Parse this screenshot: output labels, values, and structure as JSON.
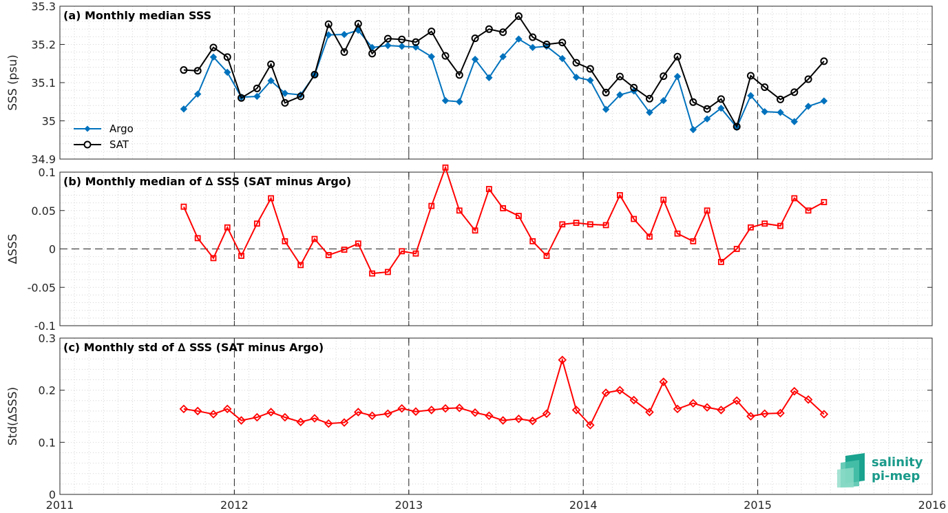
{
  "logo": {
    "line1": "salinity",
    "line2": "pi-mep"
  },
  "chart_data": [
    {
      "type": "line",
      "title": "(a) Monthly median SSS",
      "ylabel": "SSS (psu)",
      "xlim": [
        2011,
        2016
      ],
      "ylim": [
        34.9,
        35.3
      ],
      "x_ticks": [
        "2011",
        "2012",
        "2013",
        "2014",
        "2015",
        "2016"
      ],
      "y_ticks": [
        "34.9",
        "35",
        "35.1",
        "35.2",
        "35.3"
      ],
      "legend_position": "bottom-left",
      "grid": true,
      "x": [
        2011.71,
        2011.79,
        2011.88,
        2011.96,
        2012.04,
        2012.13,
        2012.21,
        2012.29,
        2012.38,
        2012.46,
        2012.54,
        2012.63,
        2012.71,
        2012.79,
        2012.88,
        2012.96,
        2013.04,
        2013.13,
        2013.21,
        2013.29,
        2013.38,
        2013.46,
        2013.54,
        2013.63,
        2013.71,
        2013.79,
        2013.88,
        2013.96,
        2014.04,
        2014.13,
        2014.21,
        2014.29,
        2014.38,
        2014.46,
        2014.54,
        2014.63,
        2014.71,
        2014.79,
        2014.88,
        2014.96,
        2015.04,
        2015.13,
        2015.21,
        2015.29,
        2015.38
      ],
      "series": [
        {
          "name": "Argo",
          "color": "#0072BD",
          "marker": "filled-diamond",
          "values": [
            35.031,
            35.07,
            35.167,
            35.127,
            35.062,
            35.064,
            35.105,
            35.072,
            35.068,
            35.12,
            35.225,
            35.226,
            35.237,
            35.192,
            35.197,
            35.195,
            35.193,
            35.168,
            35.053,
            35.05,
            35.161,
            35.113,
            35.168,
            35.214,
            35.192,
            35.195,
            35.163,
            35.114,
            35.106,
            35.03,
            35.068,
            35.078,
            35.022,
            35.053,
            35.116,
            34.977,
            35.005,
            35.033,
            34.983,
            35.066,
            35.024,
            35.022,
            34.998,
            35.038,
            35.052
          ]
        },
        {
          "name": "SAT",
          "color": "#000000",
          "marker": "open-circle",
          "values": [
            35.133,
            35.131,
            35.192,
            35.167,
            35.06,
            35.085,
            35.148,
            35.047,
            35.064,
            35.121,
            35.253,
            35.18,
            35.254,
            35.176,
            35.215,
            35.213,
            35.206,
            35.234,
            35.17,
            35.12,
            35.216,
            35.24,
            35.232,
            35.274,
            35.219,
            35.2,
            35.205,
            35.152,
            35.136,
            35.074,
            35.116,
            35.087,
            35.058,
            35.117,
            35.168,
            35.049,
            35.031,
            35.057,
            34.985,
            35.118,
            35.088,
            35.056,
            35.075,
            35.109,
            35.156
          ]
        }
      ]
    },
    {
      "type": "line",
      "title": "(b) Monthly median of ∆ SSS (SAT minus Argo)",
      "ylabel": "∆SSS",
      "xlim": [
        2011,
        2016
      ],
      "ylim": [
        -0.1,
        0.1
      ],
      "x_ticks": [
        "2011",
        "2012",
        "2013",
        "2014",
        "2015",
        "2016"
      ],
      "y_ticks": [
        "-0.1",
        "-0.05",
        "0",
        "0.05",
        "0.1"
      ],
      "grid": true,
      "x": [
        2011.71,
        2011.79,
        2011.88,
        2011.96,
        2012.04,
        2012.13,
        2012.21,
        2012.29,
        2012.38,
        2012.46,
        2012.54,
        2012.63,
        2012.71,
        2012.79,
        2012.88,
        2012.96,
        2013.04,
        2013.13,
        2013.21,
        2013.29,
        2013.38,
        2013.46,
        2013.54,
        2013.63,
        2013.71,
        2013.79,
        2013.88,
        2013.96,
        2014.04,
        2014.13,
        2014.21,
        2014.29,
        2014.38,
        2014.46,
        2014.54,
        2014.63,
        2014.71,
        2014.79,
        2014.88,
        2014.96,
        2015.04,
        2015.13,
        2015.21,
        2015.29,
        2015.38
      ],
      "series": [
        {
          "color": "#ff0000",
          "marker": "open-square",
          "values": [
            0.055,
            0.014,
            -0.012,
            0.028,
            -0.009,
            0.033,
            0.066,
            0.01,
            -0.021,
            0.013,
            -0.008,
            -0.001,
            0.007,
            -0.032,
            -0.03,
            -0.003,
            -0.006,
            0.056,
            0.106,
            0.05,
            0.024,
            0.078,
            0.053,
            0.043,
            0.01,
            -0.009,
            0.032,
            0.034,
            0.032,
            0.031,
            0.07,
            0.039,
            0.016,
            0.064,
            0.02,
            0.01,
            0.05,
            -0.017,
            0.0,
            0.028,
            0.033,
            0.03,
            0.066,
            0.05,
            0.061
          ]
        }
      ]
    },
    {
      "type": "line",
      "title": "(c) Monthly std of ∆ SSS (SAT minus Argo)",
      "ylabel": "Std(∆SSS)",
      "xlim": [
        2011,
        2016
      ],
      "ylim": [
        0,
        0.3
      ],
      "x_ticks": [
        "2011",
        "2012",
        "2013",
        "2014",
        "2015",
        "2016"
      ],
      "y_ticks": [
        "0",
        "0.1",
        "0.2",
        "0.3"
      ],
      "grid": true,
      "x": [
        2011.71,
        2011.79,
        2011.88,
        2011.96,
        2012.04,
        2012.13,
        2012.21,
        2012.29,
        2012.38,
        2012.46,
        2012.54,
        2012.63,
        2012.71,
        2012.79,
        2012.88,
        2012.96,
        2013.04,
        2013.13,
        2013.21,
        2013.29,
        2013.38,
        2013.46,
        2013.54,
        2013.63,
        2013.71,
        2013.79,
        2013.88,
        2013.96,
        2014.04,
        2014.13,
        2014.21,
        2014.29,
        2014.38,
        2014.46,
        2014.54,
        2014.63,
        2014.71,
        2014.79,
        2014.88,
        2014.96,
        2015.04,
        2015.13,
        2015.21,
        2015.29,
        2015.38
      ],
      "series": [
        {
          "color": "#ff0000",
          "marker": "open-diamond",
          "values": [
            0.164,
            0.16,
            0.154,
            0.164,
            0.142,
            0.148,
            0.158,
            0.148,
            0.139,
            0.146,
            0.136,
            0.138,
            0.158,
            0.151,
            0.155,
            0.165,
            0.159,
            0.162,
            0.165,
            0.166,
            0.157,
            0.151,
            0.142,
            0.145,
            0.141,
            0.155,
            0.258,
            0.162,
            0.133,
            0.195,
            0.2,
            0.181,
            0.158,
            0.216,
            0.164,
            0.175,
            0.167,
            0.162,
            0.18,
            0.15,
            0.155,
            0.156,
            0.198,
            0.182,
            0.154
          ]
        }
      ]
    }
  ]
}
